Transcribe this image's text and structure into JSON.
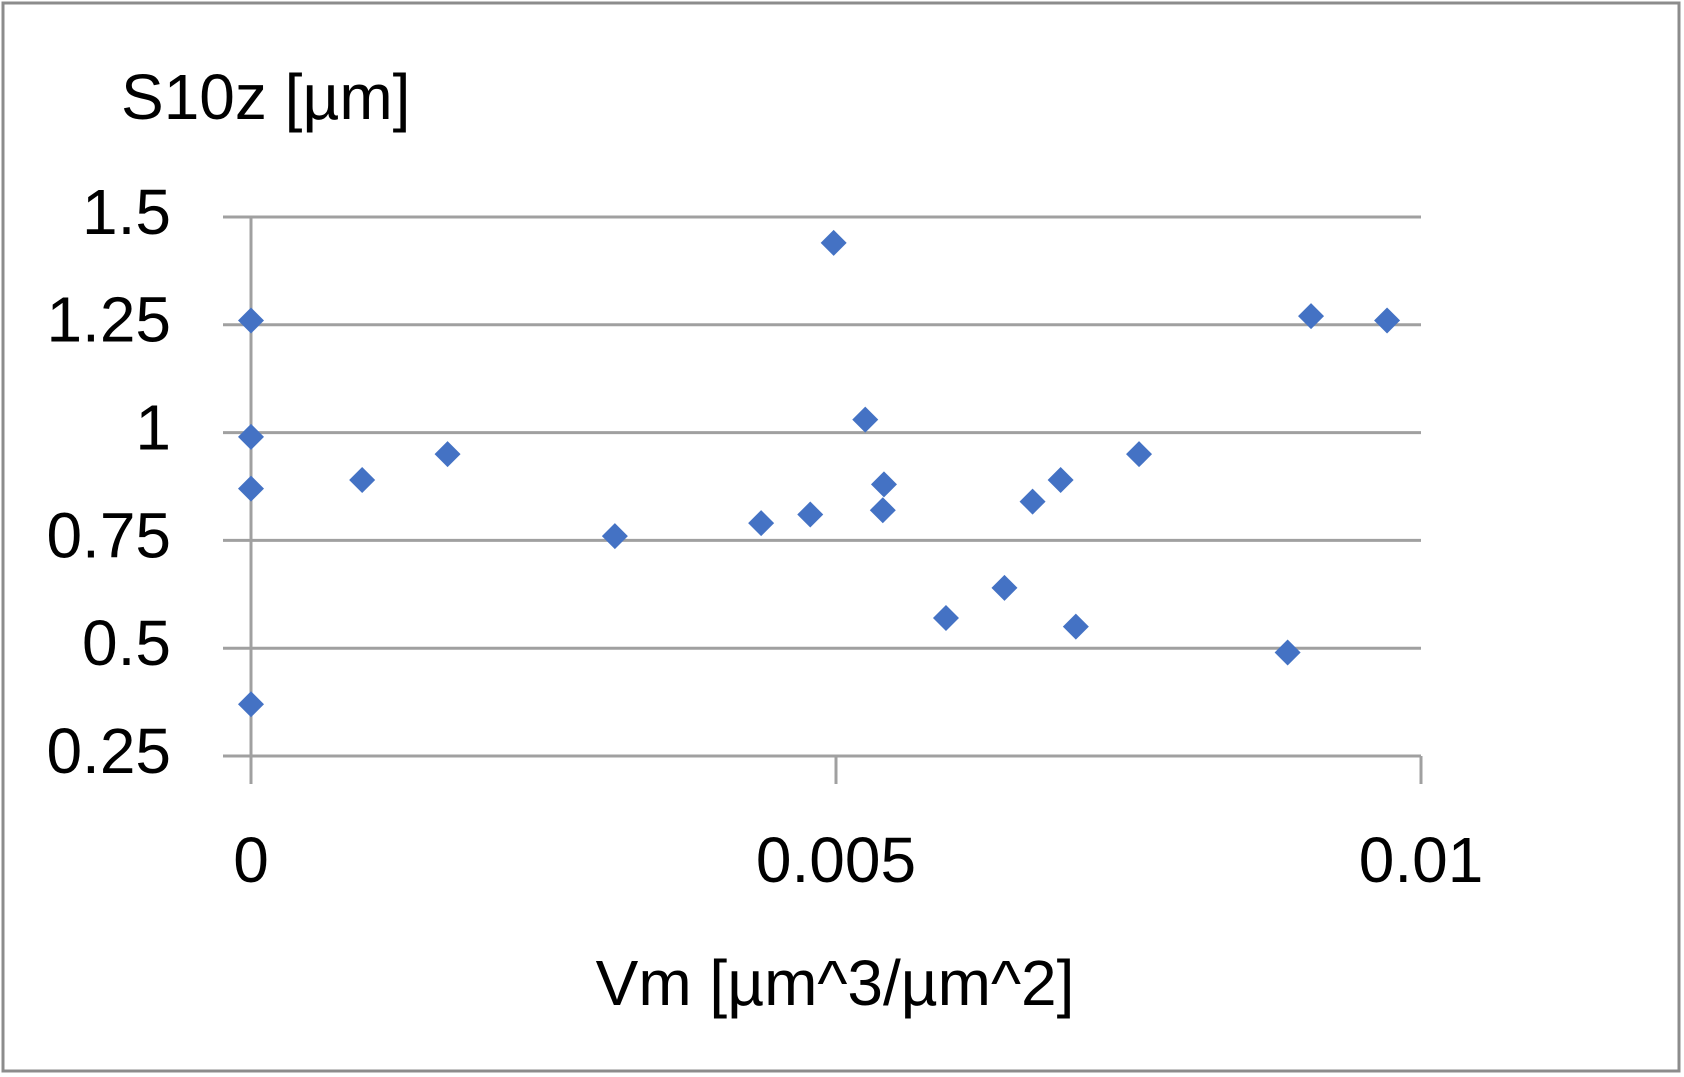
{
  "chart_data": {
    "type": "scatter",
    "y_label": "S10z [µm]",
    "x_label": "Vm [µm^3/µm^2]",
    "color": "#4472c4",
    "grid": true,
    "xlim": [
      0,
      0.01
    ],
    "xticks": [
      0,
      0.005,
      0.01
    ],
    "ylim": [
      0.25,
      1.5
    ],
    "yticks": [
      0.25,
      0.5,
      0.75,
      1,
      1.25,
      1.5
    ],
    "x": [
      0,
      0,
      0,
      0,
      0.00095,
      0.00168,
      0.00311,
      0.00436,
      0.00478,
      0.00498,
      0.00525,
      0.00541,
      0.0054,
      0.00594,
      0.00644,
      0.00668,
      0.00692,
      0.00705,
      0.00759,
      0.00886,
      0.00906,
      0.00971
    ],
    "values": [
      1.26,
      0.99,
      0.87,
      0.37,
      0.89,
      0.95,
      0.76,
      0.79,
      0.81,
      1.44,
      1.03,
      0.88,
      0.82,
      0.57,
      0.64,
      0.84,
      0.89,
      0.55,
      0.95,
      0.49,
      1.27,
      1.26
    ]
  }
}
